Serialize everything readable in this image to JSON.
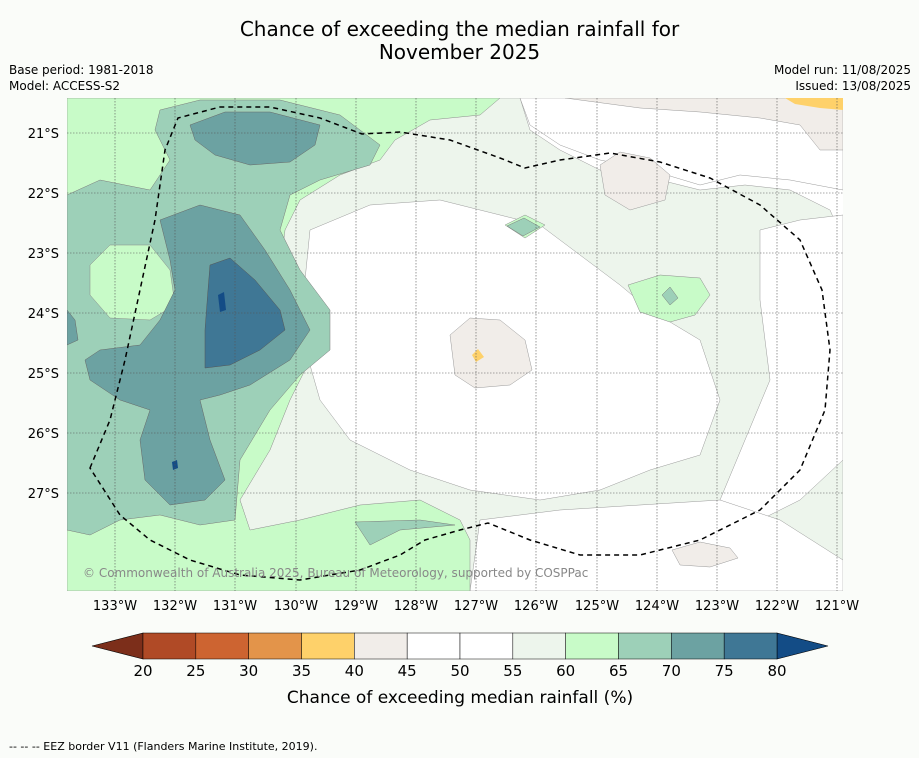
{
  "title": {
    "line1": "Chance of exceeding the median rainfall for",
    "line2": "November 2025"
  },
  "meta_left": {
    "base_period": "Base period: 1981-2018",
    "model": "Model: ACCESS-S2"
  },
  "meta_right": {
    "model_run": "Model run: 11/08/2025",
    "issued": "Issued: 13/08/2025"
  },
  "map": {
    "lat_labels": [
      "21°S",
      "22°S",
      "23°S",
      "24°S",
      "25°S",
      "26°S",
      "27°S"
    ],
    "lon_labels": [
      "133°W",
      "132°W",
      "131°W",
      "130°W",
      "129°W",
      "128°W",
      "127°W",
      "126°W",
      "125°W",
      "124°W",
      "123°W",
      "122°W",
      "121°W"
    ],
    "copyright": "© Commonwealth of Australia 2025, Bureau of Meteorology, supported by COSPPac",
    "border_line": "EEZ border"
  },
  "colorbar": {
    "ticks": [
      "20",
      "25",
      "30",
      "35",
      "40",
      "45",
      "50",
      "55",
      "60",
      "65",
      "70",
      "75",
      "80"
    ],
    "colors": [
      "#b04a26",
      "#cd6431",
      "#e3944a",
      "#fed16a",
      "#f1ede9",
      "#ffffff",
      "#ffffff",
      "#edf5ec",
      "#c8fbc8",
      "#9dd0b8",
      "#6ca2a2",
      "#3f7795"
    ],
    "under_color": "#7c2e1a",
    "over_color": "#134c86",
    "label": "Chance of exceeding median rainfall (%)"
  },
  "footer": "-- -- -- EEZ border V11 (Flanders Marine Institute, 2019)."
}
